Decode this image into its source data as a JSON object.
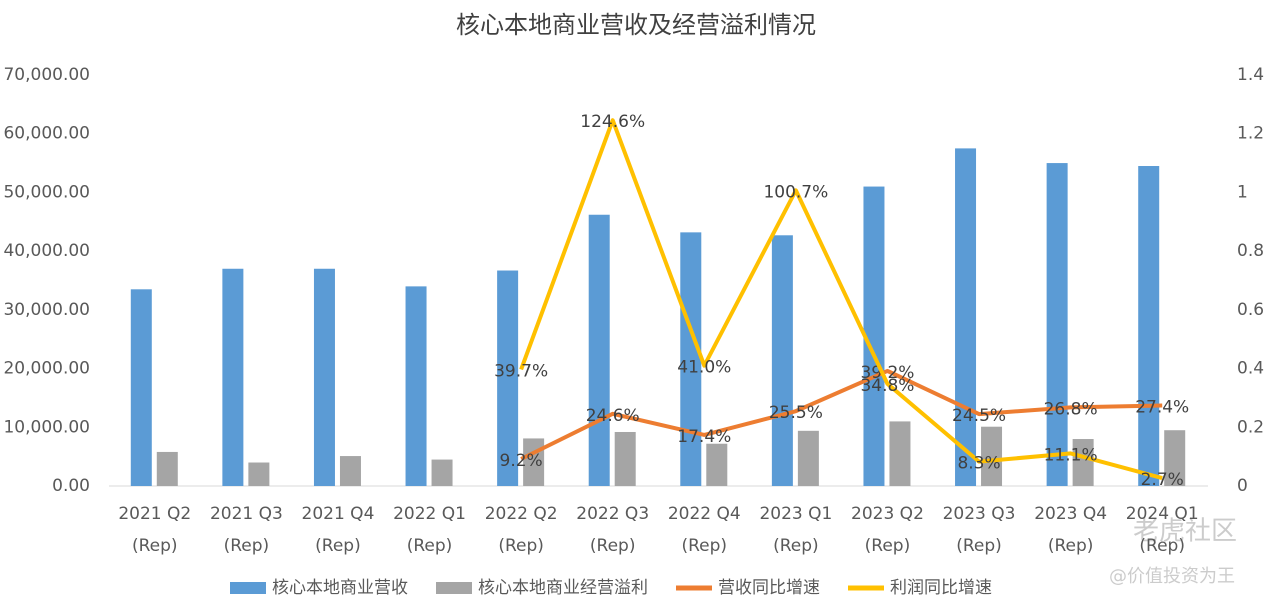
{
  "chart_data": {
    "type": "bar_line",
    "title": "核心本地商业营收及经营溢利情况",
    "categories": [
      [
        "2021 Q2",
        "(Rep)"
      ],
      [
        "2021 Q3",
        "(Rep)"
      ],
      [
        "2021 Q4",
        "(Rep)"
      ],
      [
        "2022 Q1",
        "(Rep)"
      ],
      [
        "2022 Q2",
        "(Rep)"
      ],
      [
        "2022 Q3",
        "(Rep)"
      ],
      [
        "2022 Q4",
        "(Rep)"
      ],
      [
        "2023 Q1",
        "(Rep)"
      ],
      [
        "2023 Q2",
        "(Rep)"
      ],
      [
        "2023 Q3",
        "(Rep)"
      ],
      [
        "2023 Q4",
        "(Rep)"
      ],
      [
        "2024 Q1",
        "(Rep)"
      ]
    ],
    "series": [
      {
        "name": "核心本地商业营收",
        "type": "bar",
        "color": "#5b9bd5",
        "values": [
          33500,
          37000,
          37000,
          34000,
          36700,
          46200,
          43200,
          42700,
          51000,
          57500,
          55000,
          54500
        ]
      },
      {
        "name": "核心本地商业经营溢利",
        "type": "bar",
        "color": "#a5a5a5",
        "values": [
          5800,
          4000,
          5100,
          4500,
          8100,
          9200,
          7200,
          9400,
          11000,
          10100,
          8000,
          9500
        ]
      },
      {
        "name": "营收同比增速",
        "type": "line",
        "axis": "y2",
        "color": "#ed7d31",
        "values": [
          null,
          null,
          null,
          null,
          0.092,
          0.246,
          0.174,
          0.255,
          0.392,
          0.245,
          0.268,
          0.274
        ],
        "value_labels": [
          null,
          null,
          null,
          null,
          "9.2%",
          "24.6%",
          "17.4%",
          "25.5%",
          "39.2%",
          "24.5%",
          "26.8%",
          "27.4%"
        ]
      },
      {
        "name": "利润同比增速",
        "type": "line",
        "axis": "y2",
        "color": "#ffc000",
        "values": [
          null,
          null,
          null,
          null,
          0.397,
          1.246,
          0.41,
          1.007,
          0.348,
          0.083,
          0.111,
          0.027
        ],
        "value_labels": [
          null,
          null,
          null,
          null,
          "39.7%",
          "124.6%",
          "41.0%",
          "100.7%",
          "34.8%",
          "8.3%",
          "11.1%",
          "2.7%"
        ]
      }
    ],
    "ylim": [
      0,
      70000
    ],
    "yticks": [
      {
        "value": 0,
        "label": "0.00"
      },
      {
        "value": 10000,
        "label": "10,000.00"
      },
      {
        "value": 20000,
        "label": "20,000.00"
      },
      {
        "value": 30000,
        "label": "30,000.00"
      },
      {
        "value": 40000,
        "label": "40,000.00"
      },
      {
        "value": 50000,
        "label": "50,000.00"
      },
      {
        "value": 60000,
        "label": "60,000.00"
      },
      {
        "value": 70000,
        "label": "70,000.00"
      }
    ],
    "y2lim": [
      0,
      1.4
    ],
    "y2ticks": [
      0,
      0.2,
      0.4,
      0.6,
      0.8,
      1,
      1.2,
      1.4
    ],
    "legend": "bottom",
    "watermark": [
      "老虎社区",
      "@价值投资为王"
    ]
  }
}
